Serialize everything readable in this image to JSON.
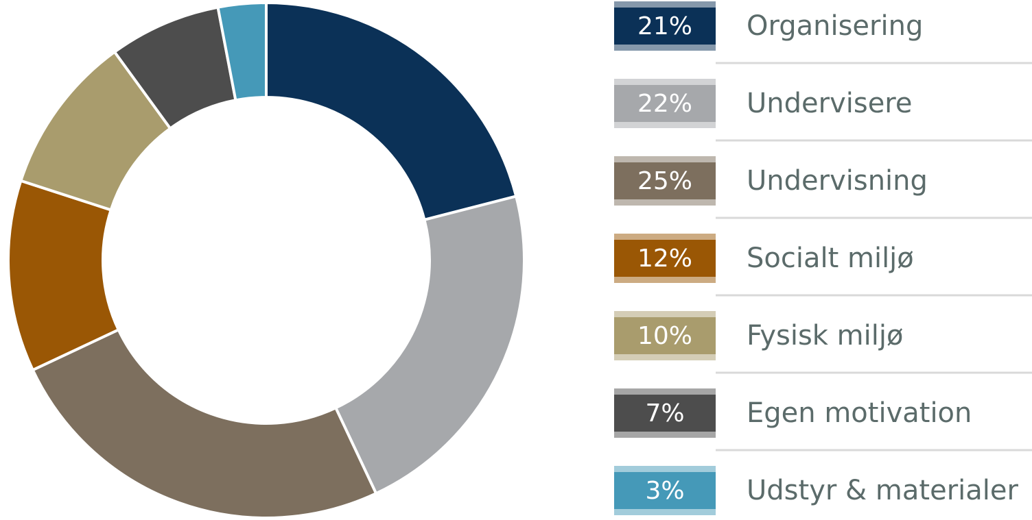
{
  "chart_data": {
    "type": "pie",
    "donut": true,
    "categories": [
      "Organisering",
      "Undervisere",
      "Undervisning",
      "Socialt miljø",
      "Fysisk miljø",
      "Egen motivation",
      "Udstyr & materialer"
    ],
    "values": [
      21,
      22,
      25,
      12,
      10,
      7,
      3
    ],
    "value_labels": [
      "21%",
      "22%",
      "25%",
      "12%",
      "10%",
      "7%",
      "3%"
    ],
    "colors": [
      "#0b3157",
      "#a6a8ab",
      "#7d6f5e",
      "#9a5705",
      "#a99c6d",
      "#4d4d4d",
      "#4599b8"
    ]
  }
}
